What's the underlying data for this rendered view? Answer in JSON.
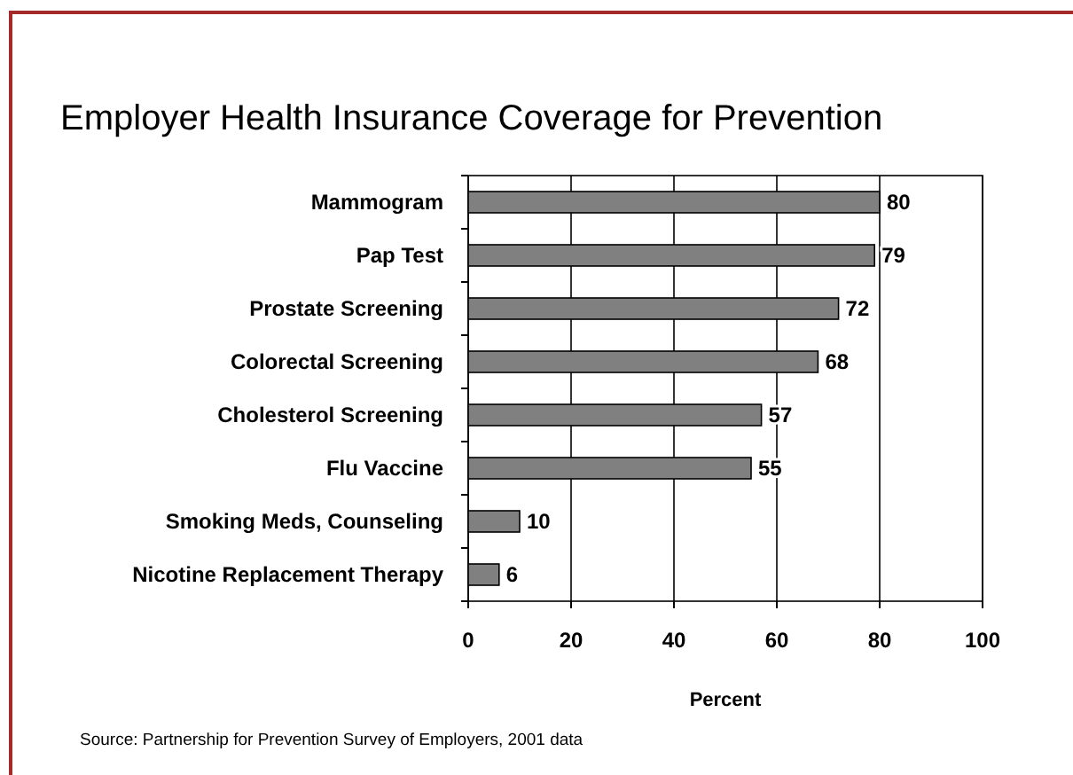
{
  "chart_data": {
    "type": "bar",
    "orientation": "horizontal",
    "title": "Employer Health Insurance Coverage for Prevention",
    "categories": [
      "Mammogram",
      "Pap Test",
      "Prostate Screening",
      "Colorectal Screening",
      "Cholesterol Screening",
      "Flu Vaccine",
      "Smoking Meds, Counseling",
      "Nicotine Replacement Therapy"
    ],
    "values": [
      80,
      79,
      72,
      68,
      57,
      55,
      10,
      6
    ],
    "color": "#808080",
    "xlim": [
      0,
      100
    ],
    "xticks": [
      0,
      20,
      40,
      60,
      80,
      100
    ],
    "xlabel": "Percent",
    "grid": "x",
    "data_labels": true,
    "annotations": [
      "Source: Partnership for Prevention Survey of Employers, 2001 data"
    ]
  }
}
